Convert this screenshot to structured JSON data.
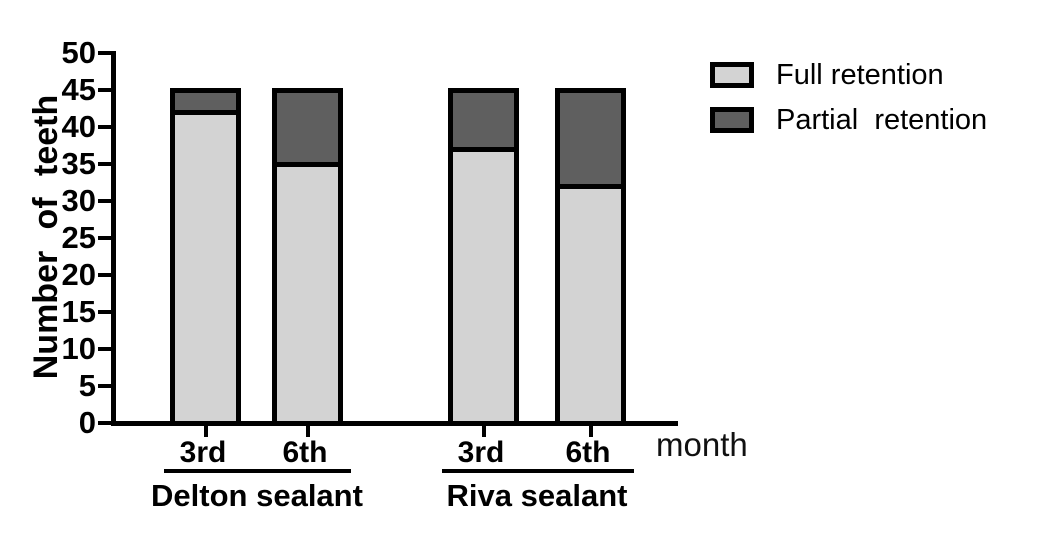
{
  "chart_data": {
    "type": "bar",
    "stacked": true,
    "title": "",
    "ylabel": "Number of teeth",
    "xlabel": "month",
    "ylim": [
      0,
      50
    ],
    "ytick_step": 5,
    "yticks": [
      0,
      5,
      10,
      15,
      20,
      25,
      30,
      35,
      40,
      45,
      50
    ],
    "grid": false,
    "legend_position": "top-right",
    "categories": [
      "3rd",
      "6th",
      "3rd",
      "6th"
    ],
    "groups": [
      {
        "label": "Delton sealant",
        "bars": [
          {
            "tick": "3rd",
            "full_retention": 42,
            "partial_retention": 3,
            "total": 45
          },
          {
            "tick": "6th",
            "full_retention": 35,
            "partial_retention": 10,
            "total": 45
          }
        ]
      },
      {
        "label": "Riva sealant",
        "bars": [
          {
            "tick": "3rd",
            "full_retention": 37,
            "partial_retention": 8,
            "total": 45
          },
          {
            "tick": "6th",
            "full_retention": 32,
            "partial_retention": 13,
            "total": 45
          }
        ]
      }
    ],
    "series": [
      {
        "name": "Full retention",
        "color": "#d3d3d3",
        "values": [
          42,
          35,
          37,
          32
        ]
      },
      {
        "name": "Partial retention",
        "color": "#5f5f5f",
        "values": [
          3,
          10,
          8,
          13
        ]
      }
    ]
  },
  "legend": {
    "items": [
      {
        "label": "Full retention",
        "color": "#d3d3d3"
      },
      {
        "label": "Partial  retention",
        "color": "#5f5f5f"
      }
    ]
  },
  "colors": {
    "full_retention": "#d3d3d3",
    "partial_retention": "#5f5f5f",
    "stroke": "#000000",
    "background": "#ffffff"
  }
}
